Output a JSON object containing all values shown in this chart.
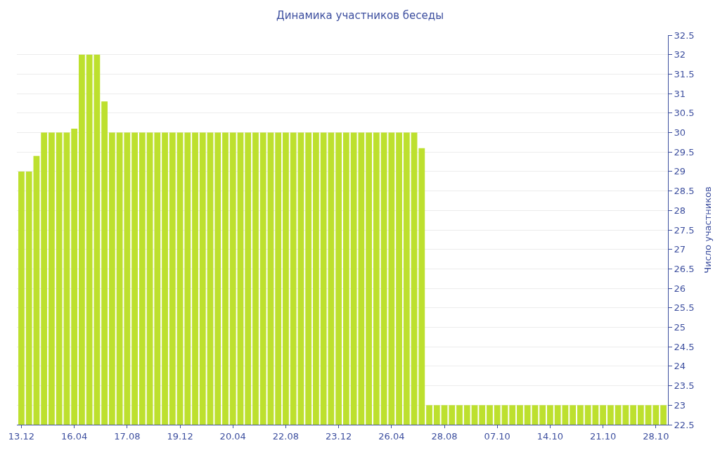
{
  "chart_data": {
    "type": "bar",
    "title": "Динамика участников беседы",
    "y2label": "Число участников",
    "categories": [
      "13.12",
      null,
      null,
      null,
      null,
      null,
      null,
      "16.04",
      null,
      null,
      null,
      null,
      null,
      null,
      "17.08",
      null,
      null,
      null,
      null,
      null,
      null,
      "19.12",
      null,
      null,
      null,
      null,
      null,
      null,
      "20.04",
      null,
      null,
      null,
      null,
      null,
      null,
      "22.08",
      null,
      null,
      null,
      null,
      null,
      null,
      "23.12",
      null,
      null,
      null,
      null,
      null,
      null,
      "26.04",
      null,
      null,
      null,
      null,
      null,
      null,
      "28.08",
      null,
      null,
      null,
      null,
      null,
      null,
      "07.10",
      null,
      null,
      null,
      null,
      null,
      null,
      "14.10",
      null,
      null,
      null,
      null,
      null,
      null,
      "21.10",
      null,
      null,
      null,
      null,
      null,
      null,
      "28.10",
      null
    ],
    "series": [
      {
        "axis": "y2",
        "color": "#bde02e",
        "values": [
          29,
          29,
          29.4,
          30,
          30,
          30,
          30,
          30.1,
          32,
          32,
          32,
          30.8,
          30,
          30,
          30,
          30,
          30,
          30,
          30,
          30,
          30,
          30,
          30,
          30,
          30,
          30,
          30,
          30,
          30,
          30,
          30,
          30,
          30,
          30,
          30,
          30,
          30,
          30,
          30,
          30,
          30,
          30,
          30,
          30,
          30,
          30,
          30,
          30,
          30,
          30,
          30,
          30,
          30,
          29.6,
          23,
          23,
          23,
          23,
          23,
          23,
          23,
          23,
          23,
          23,
          23,
          23,
          23,
          23,
          23,
          23,
          23,
          23,
          23,
          23,
          23,
          23,
          23,
          23,
          23,
          23,
          23,
          23,
          23,
          23,
          23,
          23
        ]
      }
    ],
    "y2lim": [
      22.5,
      32.5
    ],
    "y2ticks": [
      22.5,
      23,
      23.5,
      24,
      24.5,
      25,
      25.5,
      26,
      26.5,
      27,
      27.5,
      28,
      28.5,
      29,
      29.5,
      30,
      30.5,
      31,
      31.5,
      32,
      32.5
    ],
    "grid": "y"
  }
}
